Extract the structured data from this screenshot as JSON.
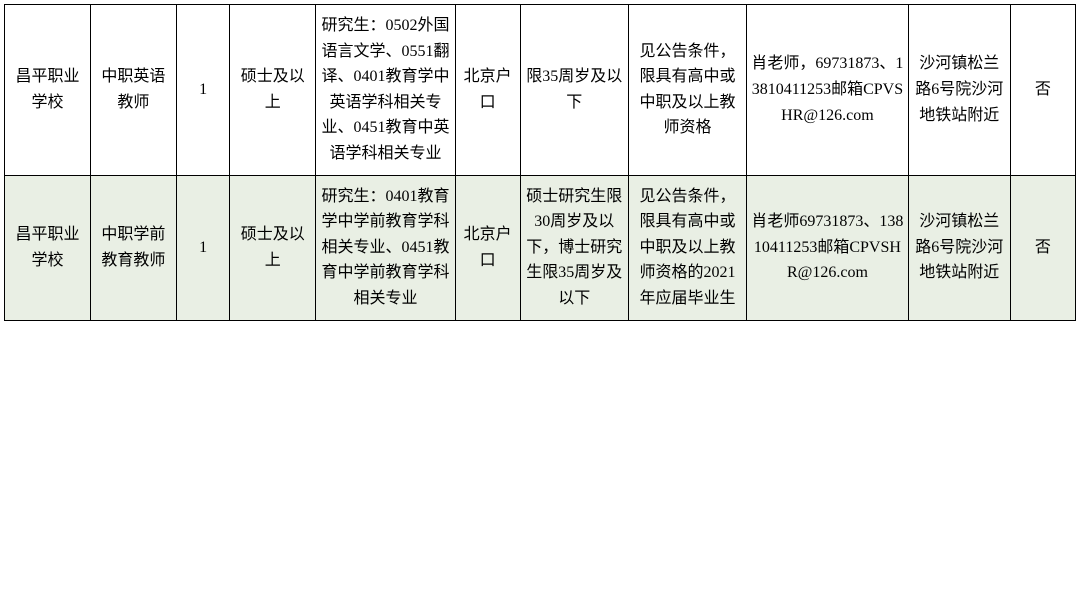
{
  "table": {
    "background_color": "#ffffff",
    "alt_row_background": "#e9efe4",
    "border_color": "#000000",
    "text_color": "#000000",
    "font_size": 16,
    "column_widths_pct": [
      7.4,
      7.4,
      4.6,
      7.4,
      12.0,
      5.6,
      9.3,
      10.2,
      13.9,
      8.8,
      5.6
    ],
    "rows": [
      {
        "alt": false,
        "cells": [
          "昌平职业学校",
          "中职英语教师",
          "1",
          "硕士及以上",
          "研究生：0502外国语言文学、0551翻译、0401教育学中英语学科相关专业、0451教育中英语学科相关专业",
          "北京户口",
          "限35周岁及以下",
          "见公告条件，限具有高中或中职及以上教师资格",
          "肖老师，69731873、13810411253邮箱CPVSHR@126.com",
          "沙河镇松兰路6号院沙河地铁站附近",
          "否"
        ]
      },
      {
        "alt": true,
        "cells": [
          "昌平职业学校",
          "中职学前教育教师",
          "1",
          "硕士及以上",
          "研究生：0401教育学中学前教育学科相关专业、0451教育中学前教育学科相关专业",
          "北京户口",
          "硕士研究生限30周岁及以下，博士研究生限35周岁及以下",
          "见公告条件，限具有高中或中职及以上教师资格的2021年应届毕业生",
          "肖老师69731873、13810411253邮箱CPVSHR@126.com",
          "沙河镇松兰路6号院沙河地铁站附近",
          "否"
        ]
      }
    ]
  }
}
